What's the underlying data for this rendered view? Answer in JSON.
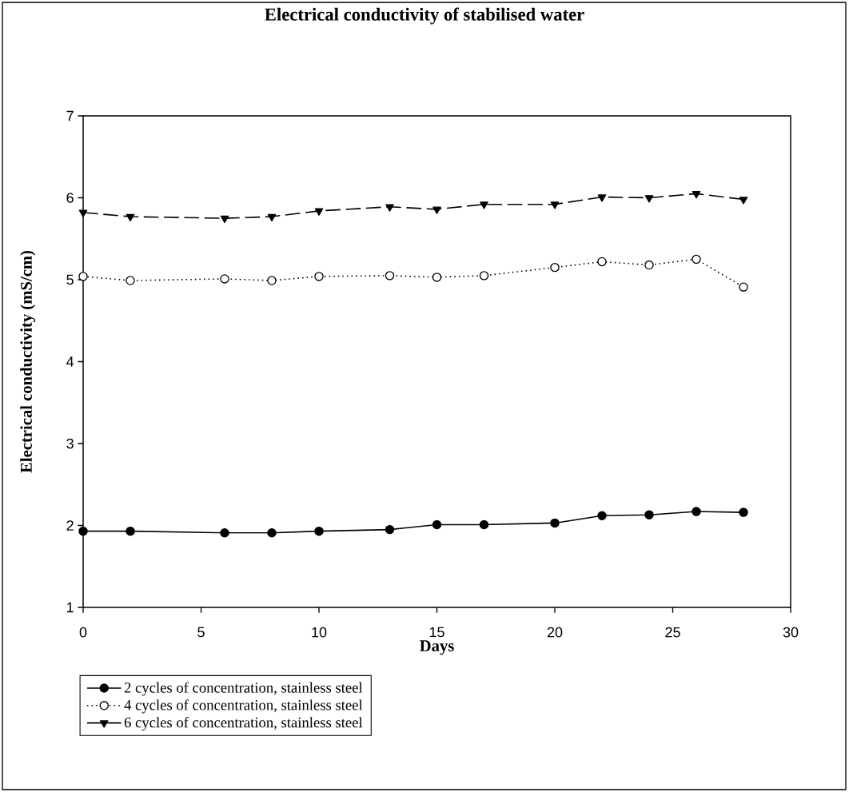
{
  "chart_data": {
    "type": "line",
    "title": "Electrical conductivity of stabilised water",
    "xlabel": "Days",
    "ylabel": "Electrical conductivity (mS/cm)",
    "x": [
      0,
      2,
      6,
      8,
      10,
      13,
      15,
      17,
      20,
      22,
      24,
      26,
      28
    ],
    "series": [
      {
        "name": "2 cycles of concentration, stainless steel",
        "color": "#000000",
        "marker": "circle",
        "line_style": "solid",
        "values": [
          1.93,
          1.93,
          1.91,
          1.91,
          1.93,
          1.95,
          2.01,
          2.01,
          2.03,
          2.12,
          2.13,
          2.17,
          2.16
        ]
      },
      {
        "name": "4 cycles of concentration, stainless steel",
        "color": "#000000",
        "marker": "circle",
        "line_style": "dotted",
        "values": [
          5.04,
          4.99,
          5.01,
          4.99,
          5.04,
          5.05,
          5.03,
          5.05,
          5.15,
          5.22,
          5.18,
          5.25,
          4.91
        ]
      },
      {
        "name": "6 cycles of concentration, stainless steel",
        "color": "#000000",
        "marker": "triangle",
        "line_style": "dashed",
        "values": [
          5.82,
          5.77,
          5.75,
          5.77,
          5.84,
          5.89,
          5.86,
          5.92,
          5.92,
          6.01,
          6.0,
          6.05,
          5.98
        ]
      }
    ],
    "xlim": [
      0,
      30
    ],
    "xticks": [
      0,
      5,
      10,
      15,
      20,
      25,
      30
    ],
    "ylim": [
      1,
      7
    ],
    "yticks": [
      1,
      2,
      3,
      4,
      5,
      6,
      7
    ],
    "grid": false,
    "legend": "bottom left"
  }
}
